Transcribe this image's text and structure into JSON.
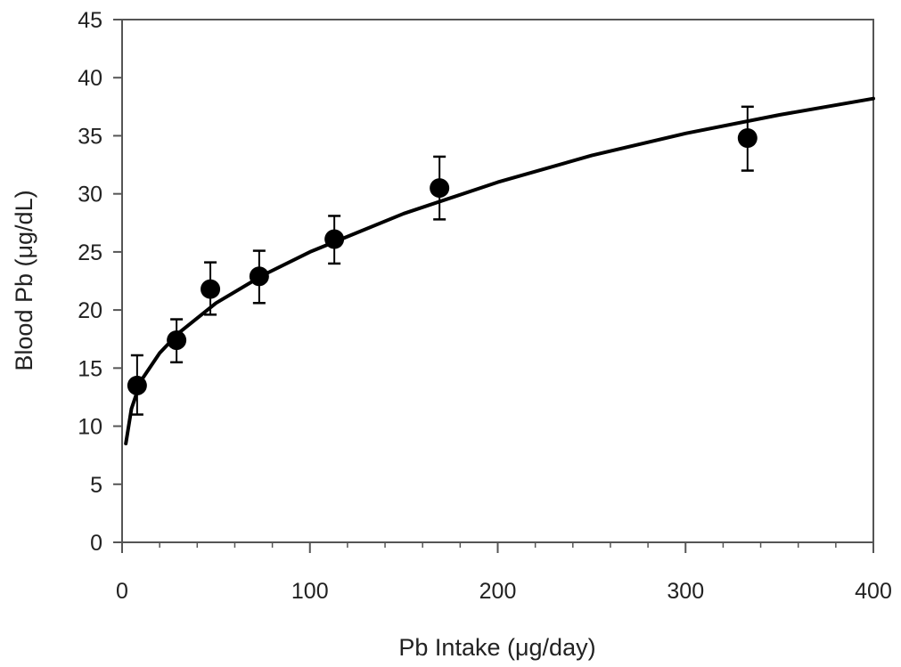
{
  "chart_data": {
    "type": "scatter",
    "title": "",
    "xlabel": "Pb Intake (μg/day)",
    "ylabel": "Blood Pb (μg/dL)",
    "xlim": [
      0,
      400
    ],
    "ylim": [
      0,
      45
    ],
    "x_ticks": [
      "0",
      "100",
      "200",
      "300",
      "400"
    ],
    "y_ticks": [
      "0",
      "5",
      "10",
      "15",
      "20",
      "25",
      "30",
      "35",
      "40",
      "45"
    ],
    "x_minor_step": 20,
    "grid": false,
    "legend": "none",
    "colors": {
      "points": "#000000",
      "fit_line": "#000000",
      "axes": "#555555"
    },
    "points": [
      {
        "x": 8,
        "y": 13.5,
        "err_low": 11.0,
        "err_high": 16.1
      },
      {
        "x": 29,
        "y": 17.4,
        "err_low": 15.5,
        "err_high": 19.2
      },
      {
        "x": 47,
        "y": 21.8,
        "err_low": 19.6,
        "err_high": 24.1
      },
      {
        "x": 73,
        "y": 22.9,
        "err_low": 20.6,
        "err_high": 25.1
      },
      {
        "x": 113,
        "y": 26.1,
        "err_low": 24.0,
        "err_high": 28.1
      },
      {
        "x": 169,
        "y": 30.5,
        "err_low": 27.8,
        "err_high": 33.2
      },
      {
        "x": 333,
        "y": 34.8,
        "err_low": 32.0,
        "err_high": 37.5
      }
    ],
    "fit_curve": [
      {
        "x": 2,
        "y": 8.5
      },
      {
        "x": 5,
        "y": 11.5
      },
      {
        "x": 10,
        "y": 13.9
      },
      {
        "x": 20,
        "y": 16.3
      },
      {
        "x": 30,
        "y": 18.0
      },
      {
        "x": 50,
        "y": 20.6
      },
      {
        "x": 75,
        "y": 23.0
      },
      {
        "x": 100,
        "y": 25.0
      },
      {
        "x": 150,
        "y": 28.3
      },
      {
        "x": 200,
        "y": 31.0
      },
      {
        "x": 250,
        "y": 33.3
      },
      {
        "x": 300,
        "y": 35.2
      },
      {
        "x": 350,
        "y": 36.8
      },
      {
        "x": 400,
        "y": 38.2
      }
    ]
  }
}
